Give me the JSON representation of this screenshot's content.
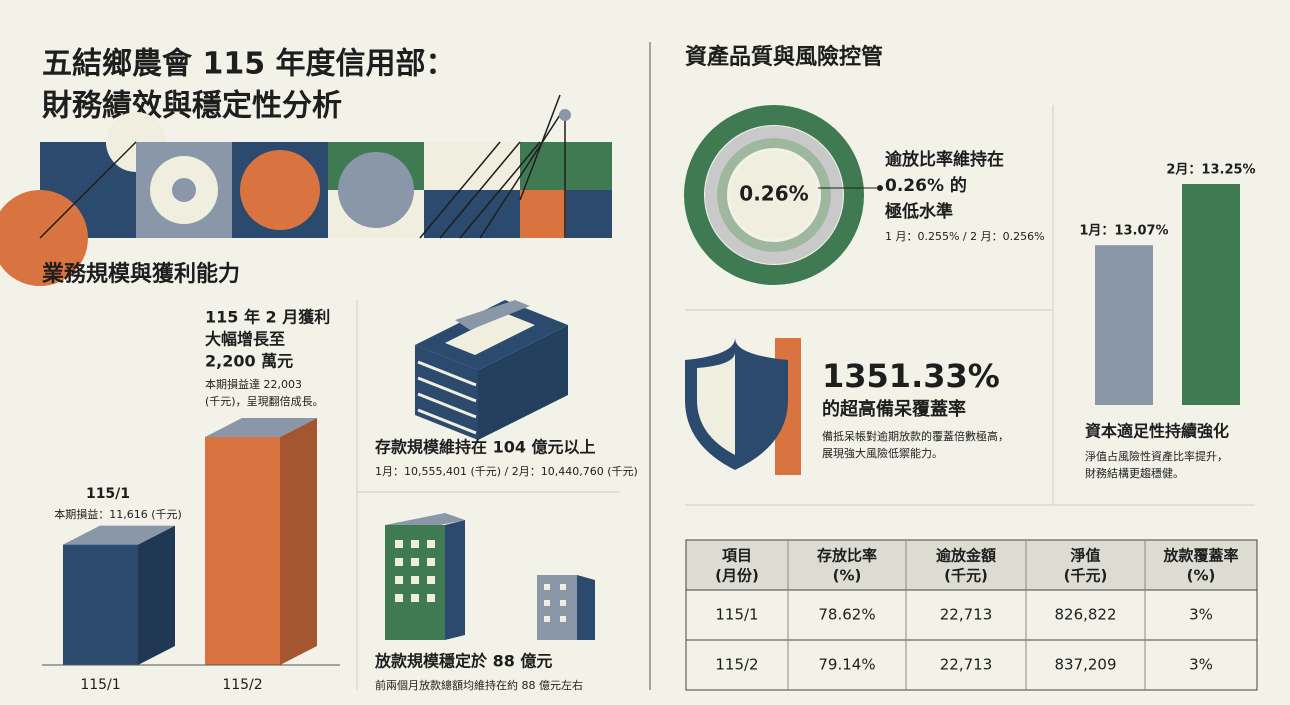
{
  "title": [
    "五結鄉農會 115 年度信用部：",
    "財務績效與穩定性分析"
  ],
  "business": {
    "heading": "業務規模與獲利能力",
    "profit_headline": [
      "115 年 2 月獲利",
      "大幅增長至",
      "2,200 萬元"
    ],
    "profit_note": [
      "本期損益達 22,003",
      "(千元)，呈現翻倍成長。"
    ],
    "first_note": "本期損益：11,616 (千元)",
    "deposit": {
      "title": "存款規模維持在 104 億元以上",
      "note": "1月：10,555,401 (千元) / 2月：10,440,760 (千元)"
    },
    "loan": {
      "title": "放款規模穩定於 88 億元",
      "note": "前兩個月放款總額均維持在約 88 億元左右"
    }
  },
  "risk": {
    "heading": "資產品質與風險控管",
    "npl": {
      "center": "0.26%",
      "text": [
        "逾放比率維持在",
        "0.26% 的",
        "極低水準"
      ],
      "note": "1 月：0.255% / 2 月：0.256%"
    },
    "coverage": {
      "value": "1351.33%",
      "text": "的超高備呆覆蓋率",
      "note": [
        "備抵呆帳對逾期放款的覆蓋倍數極高，",
        "展現強大風險低禦能力。"
      ]
    }
  },
  "chart_data": [
    {
      "type": "bar",
      "categories": [
        "115/1",
        "115/2"
      ],
      "values": [
        11616,
        22003
      ],
      "colors": [
        "#2b4a6e",
        "#d9733f"
      ]
    },
    {
      "type": "bar",
      "title": "資本適足性持續強化",
      "subtitle": [
        "淨值占風險性資產比率提升，",
        "財務結構更趨穩健。"
      ],
      "values": [
        13.07,
        13.25
      ],
      "value_labels": [
        "1月：13.07%",
        "2月：13.25%"
      ],
      "colors": [
        "#8a97a8",
        "#3f7a52"
      ],
      "ylim": [
        12.6,
        13.3
      ]
    }
  ],
  "table": {
    "headers": [
      [
        "項目",
        "(月份)"
      ],
      [
        "存放比率",
        "(%)"
      ],
      [
        "逾放金額",
        "(千元)"
      ],
      [
        "淨值",
        "(千元)"
      ],
      [
        "放款覆蓋率",
        "(%)"
      ]
    ],
    "rows": [
      [
        "115/1",
        "78.62%",
        "22,713",
        "826,822",
        "3%"
      ],
      [
        "115/2",
        "79.14%",
        "22,713",
        "837,209",
        "3%"
      ]
    ]
  }
}
